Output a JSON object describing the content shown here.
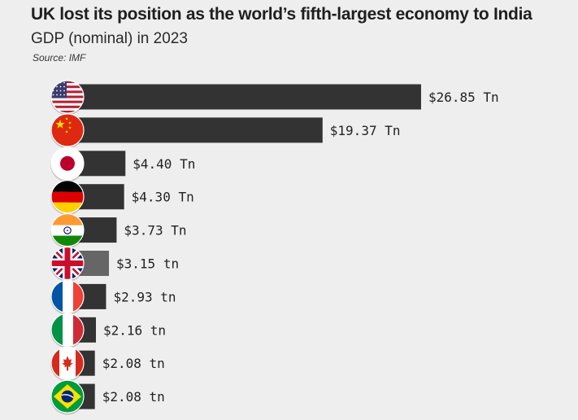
{
  "title": "UK lost its position as the world’s fifth-largest economy to India",
  "subtitle": "GDP (nominal) in 2023",
  "source": "Source: IMF",
  "colors": {
    "bar": "#333333",
    "highlight": "#666666",
    "background": "#eeeeee"
  },
  "chart_data": {
    "type": "bar",
    "orientation": "horizontal",
    "title": "UK lost its position as the world’s fifth-largest economy to India",
    "subtitle": "GDP (nominal) in 2023",
    "source": "Source: IMF",
    "xlabel": "",
    "ylabel": "",
    "grid": false,
    "legend": "none",
    "highlight_index": 5,
    "categories": [
      "united-states-flag",
      "china-flag",
      "japan-flag",
      "germany-flag",
      "india-flag",
      "united-kingdom-flag",
      "france-flag",
      "italy-flag",
      "canada-flag",
      "brazil-flag"
    ],
    "values": [
      26.85,
      19.37,
      4.4,
      4.3,
      3.73,
      3.15,
      2.93,
      2.16,
      2.08,
      2.08
    ],
    "labels": [
      "$26.85 Tn",
      "$19.37 Tn",
      "$4.40 Tn",
      "$4.30 Tn",
      "$3.73 Tn",
      "$3.15 tn",
      "$2.93 tn",
      "$2.16 tn",
      "$2.08 tn",
      "$2.08 tn"
    ]
  }
}
